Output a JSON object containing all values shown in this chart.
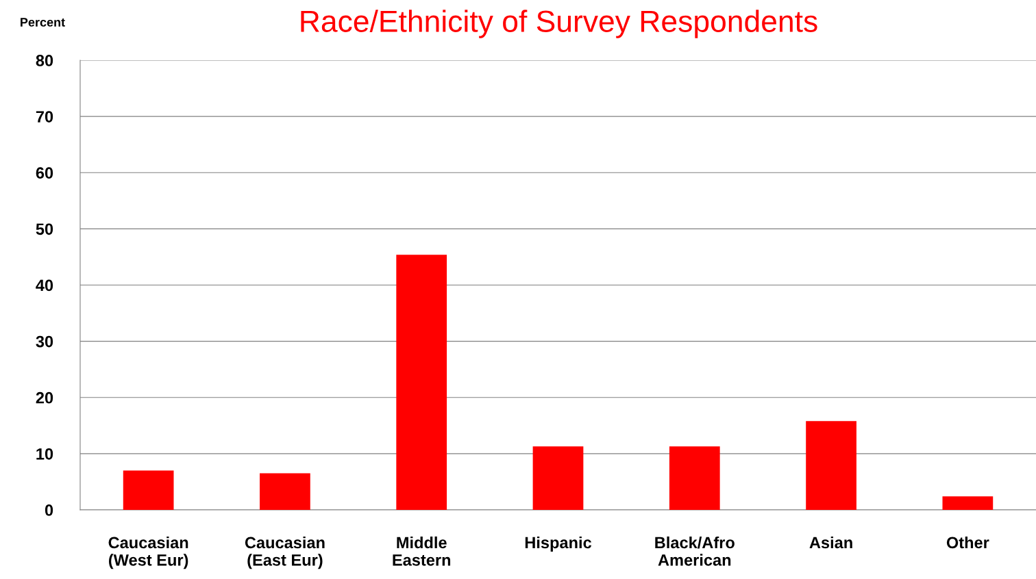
{
  "chart_data": {
    "type": "bar",
    "title": "Race/Ethnicity of Survey Respondents",
    "ylabel": "Percent",
    "categories": [
      "Caucasian\n(West Eur)",
      "Caucasian\n(East Eur)",
      "Middle\nEastern",
      "Hispanic",
      "Black/Afro\nAmerican",
      "Asian",
      "Other"
    ],
    "values": [
      7.0,
      6.5,
      45.4,
      11.3,
      11.3,
      15.8,
      2.4
    ],
    "color": "#ff0000",
    "ylim": [
      0,
      80
    ],
    "yticks": [
      0,
      10,
      20,
      30,
      40,
      50,
      60,
      70,
      80
    ],
    "grid": "y"
  }
}
